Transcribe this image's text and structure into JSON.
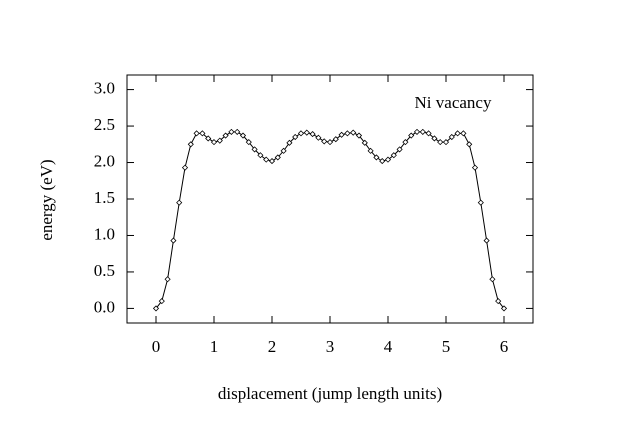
{
  "chart_data": {
    "type": "line",
    "annotation": "Ni vacancy",
    "xlabel": "displacement (jump length units)",
    "ylabel": "energy (eV)",
    "color": "#000000",
    "markers": true,
    "x": [
      0,
      0.1,
      0.2,
      0.3,
      0.4,
      0.5,
      0.6,
      0.7,
      0.8,
      0.9,
      1,
      1.1,
      1.2,
      1.3,
      1.4,
      1.5,
      1.6,
      1.7,
      1.8,
      1.9,
      2,
      2.1,
      2.2,
      2.3,
      2.4,
      2.5,
      2.6,
      2.7,
      2.8,
      2.9,
      3,
      3.1,
      3.2,
      3.3,
      3.4,
      3.5,
      3.6,
      3.7,
      3.8,
      3.9,
      4,
      4.1,
      4.2,
      4.3,
      4.4,
      4.5,
      4.6,
      4.7,
      4.8,
      4.9,
      5,
      5.1,
      5.2,
      5.3,
      5.4,
      5.5,
      5.6,
      5.7,
      5.8,
      5.9,
      6
    ],
    "values": [
      0,
      0.1,
      0.4,
      0.93,
      1.45,
      1.93,
      2.25,
      2.4,
      2.4,
      2.33,
      2.28,
      2.3,
      2.37,
      2.42,
      2.42,
      2.37,
      2.28,
      2.18,
      2.1,
      2.04,
      2.02,
      2.07,
      2.16,
      2.27,
      2.35,
      2.4,
      2.41,
      2.39,
      2.34,
      2.29,
      2.28,
      2.32,
      2.38,
      2.4,
      2.41,
      2.37,
      2.27,
      2.16,
      2.07,
      2.02,
      2.04,
      2.1,
      2.18,
      2.28,
      2.37,
      2.42,
      2.42,
      2.4,
      2.33,
      2.28,
      2.28,
      2.35,
      2.4,
      2.4,
      2.25,
      1.93,
      1.45,
      0.93,
      0.4,
      0.1,
      0
    ],
    "xlim": [
      -0.5,
      6.5
    ],
    "xticks": [
      0,
      1,
      2,
      3,
      4,
      5,
      6
    ],
    "ylim": [
      -0.2,
      3.2
    ],
    "yticks": [
      {
        "value": 0,
        "label": "0.0"
      },
      0.5,
      {
        "value": 1,
        "label": "1.0"
      },
      1.5,
      {
        "value": 2,
        "label": "2.0"
      },
      2.5,
      {
        "value": 3,
        "label": "3.0"
      }
    ]
  }
}
